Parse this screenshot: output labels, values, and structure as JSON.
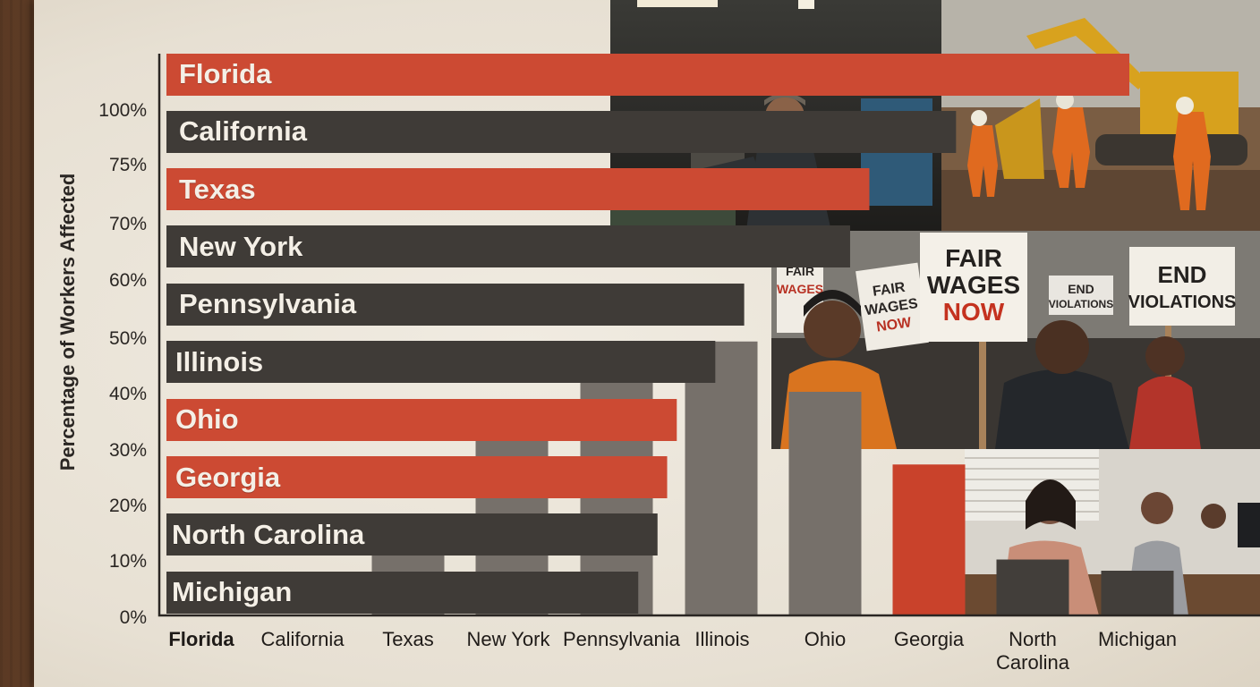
{
  "chart_data": {
    "type": "bar",
    "ylabel": "Percentage of Workers Affected",
    "y_ticks": [
      "0%",
      "10%",
      "20%",
      "30%",
      "40%",
      "50%",
      "60%",
      "70%",
      "75%",
      "100%"
    ],
    "x_tick_labels": [
      "Florida",
      "California",
      "Texas",
      "New York",
      "Pennsylvania",
      "Illinois",
      "Ohio",
      "Georgia",
      "North\nCarolina",
      "Michigan"
    ],
    "horizontal_bar_labels": [
      "Florida",
      "California",
      "Texas",
      "New York",
      "Pennsylvania",
      "Illinois",
      "Ohio",
      "Georgia",
      "North Carolina",
      "Michigan"
    ],
    "categories": [
      "Florida",
      "California",
      "Texas",
      "New York",
      "Pennsylvania",
      "Illinois",
      "Ohio",
      "Georgia",
      "North Carolina",
      "Michigan"
    ],
    "series": [
      {
        "values": [
          100,
          82,
          73,
          71,
          60,
          57,
          53,
          52,
          51,
          49
        ],
        "orientation": "horizontal"
      },
      {
        "values": [
          null,
          null,
          15,
          36,
          42,
          49,
          40,
          27,
          10,
          8
        ],
        "orientation": "vertical"
      }
    ],
    "highlighted": [
      "Florida",
      "Texas",
      "Ohio",
      "Georgia"
    ],
    "grid": false,
    "colors": {
      "highlight": "#cc4a33",
      "dark": "#3f3b37",
      "column_gray": "#76706a",
      "column_highlight": "#c9422b",
      "column_dark": "#423e3a",
      "axis": "#2a2623"
    }
  },
  "photos": {
    "factory": {
      "sign_text": ""
    },
    "protest": {
      "sign_1": "FAIR\nWAGES",
      "sign_2": "FAIR\nWAGES\nNOW",
      "sign_3": "FAIR\nWAGES\nNOW",
      "sign_4": "END\nVIOLATIONS",
      "sign_5": "END\nVIOLATIONS"
    }
  }
}
